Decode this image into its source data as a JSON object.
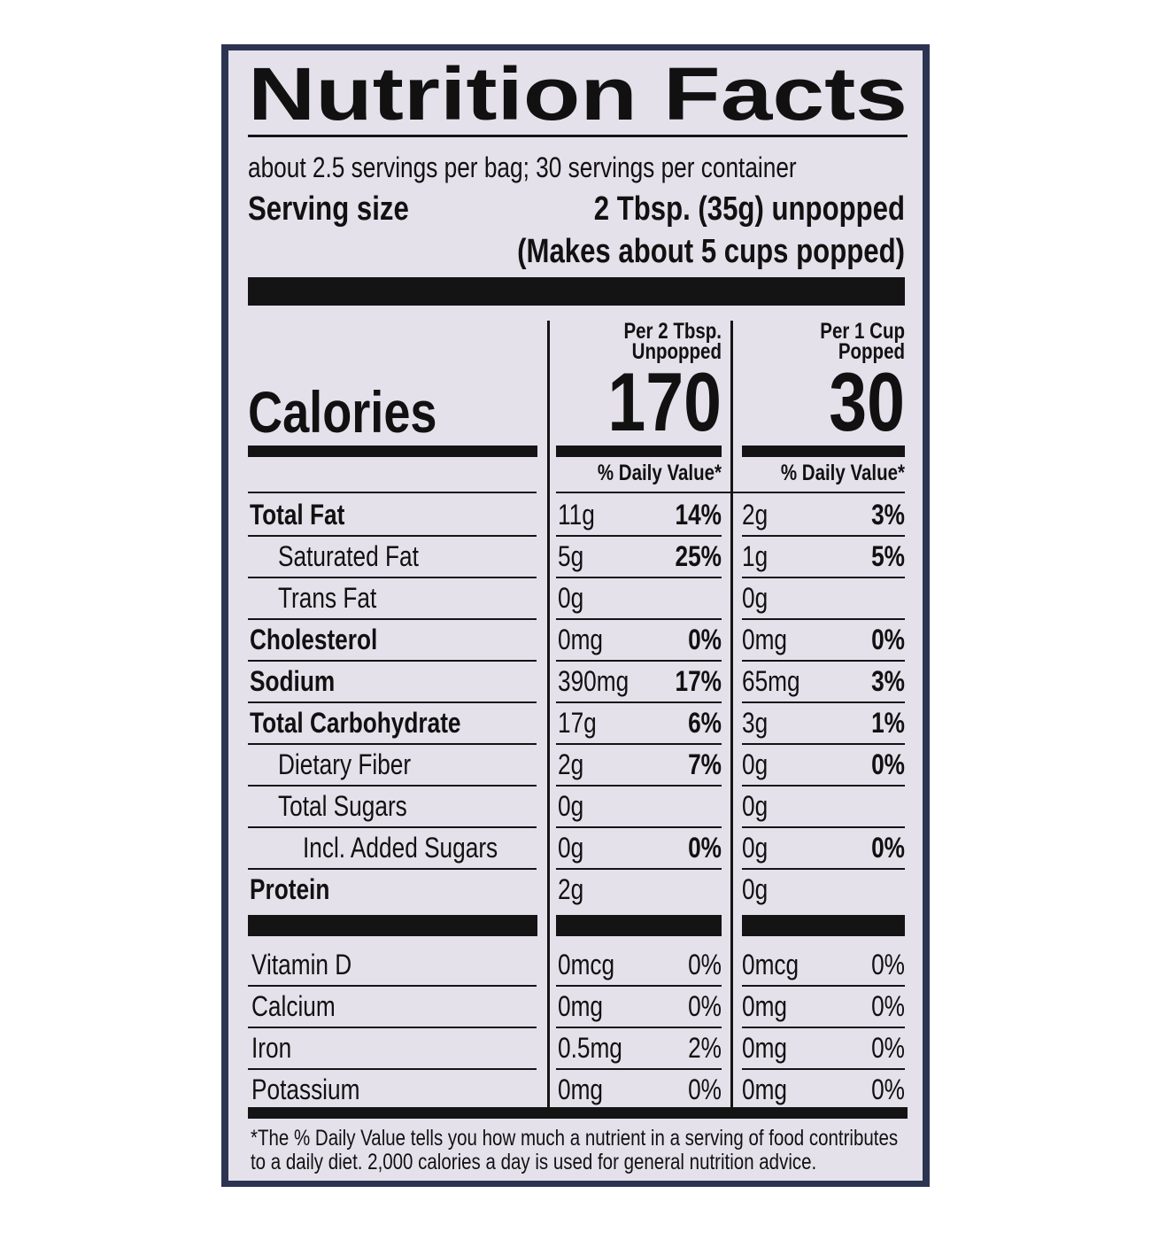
{
  "header": {
    "title": "Nutrition Facts",
    "servings": "about 2.5 servings per bag; 30 servings per container",
    "serving_size_label": "Serving size",
    "serving_size_value": "2 Tbsp. (35g) unpopped",
    "serving_size_note": "(Makes about 5 cups popped)"
  },
  "calories_label": "Calories",
  "columns": [
    {
      "heading_line1": "Per 2 Tbsp.",
      "heading_line2": "Unpopped",
      "calories": "170",
      "dv_header": "% Daily Value*"
    },
    {
      "heading_line1": "Per 1 Cup",
      "heading_line2": "Popped",
      "calories": "30",
      "dv_header": "% Daily Value*"
    }
  ],
  "nutrients": [
    {
      "name": "Total Fat",
      "bold": true,
      "indent": 0,
      "values": [
        [
          "11g",
          "14%"
        ],
        [
          "2g",
          "3%"
        ]
      ]
    },
    {
      "name": "Saturated Fat",
      "bold": false,
      "indent": 1,
      "values": [
        [
          "5g",
          "25%"
        ],
        [
          "1g",
          "5%"
        ]
      ]
    },
    {
      "name": "Trans Fat",
      "bold": false,
      "indent": 1,
      "values": [
        [
          "0g",
          null
        ],
        [
          "0g",
          null
        ]
      ]
    },
    {
      "name": "Cholesterol",
      "bold": true,
      "indent": 0,
      "values": [
        [
          "0mg",
          "0%"
        ],
        [
          "0mg",
          "0%"
        ]
      ]
    },
    {
      "name": "Sodium",
      "bold": true,
      "indent": 0,
      "values": [
        [
          "390mg",
          "17%"
        ],
        [
          "65mg",
          "3%"
        ]
      ]
    },
    {
      "name": "Total Carbohydrate",
      "bold": true,
      "indent": 0,
      "values": [
        [
          "17g",
          "6%"
        ],
        [
          "3g",
          "1%"
        ]
      ]
    },
    {
      "name": "Dietary Fiber",
      "bold": false,
      "indent": 1,
      "values": [
        [
          "2g",
          "7%"
        ],
        [
          "0g",
          "0%"
        ]
      ]
    },
    {
      "name": "Total Sugars",
      "bold": false,
      "indent": 1,
      "values": [
        [
          "0g",
          null
        ],
        [
          "0g",
          null
        ]
      ]
    },
    {
      "name": "Incl. Added Sugars",
      "bold": false,
      "indent": 2,
      "values": [
        [
          "0g",
          "0%"
        ],
        [
          "0g",
          "0%"
        ]
      ]
    },
    {
      "name": "Protein",
      "bold": true,
      "indent": 0,
      "values": [
        [
          "2g",
          null
        ],
        [
          "0g",
          null
        ]
      ]
    }
  ],
  "vitamins": [
    {
      "name": "Vitamin D",
      "values": [
        [
          "0mcg",
          "0%"
        ],
        [
          "0mcg",
          "0%"
        ]
      ]
    },
    {
      "name": "Calcium",
      "values": [
        [
          "0mg",
          "0%"
        ],
        [
          "0mg",
          "0%"
        ]
      ]
    },
    {
      "name": "Iron",
      "values": [
        [
          "0.5mg",
          "2%"
        ],
        [
          "0mg",
          "0%"
        ]
      ]
    },
    {
      "name": "Potassium",
      "values": [
        [
          "0mg",
          "0%"
        ],
        [
          "0mg",
          "0%"
        ]
      ]
    }
  ],
  "footnote": [
    "*The % Daily Value tells you how much a nutrient in a serving of food contributes",
    "to a daily diet. 2,000 calories a day is used for general nutrition advice."
  ]
}
